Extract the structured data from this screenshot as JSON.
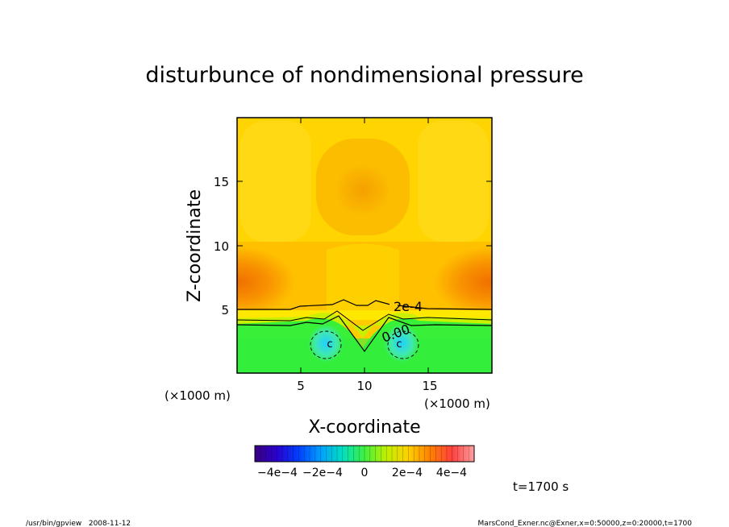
{
  "chart_data": {
    "type": "heatmap",
    "title": "disturbunce of nondimensional pressure",
    "xlabel": "X-coordinate",
    "ylabel": "Z-coordinate",
    "x_unit": "(×1000 m)",
    "y_unit": "(×1000 m)",
    "x_ticks": [
      "5",
      "10",
      "15"
    ],
    "y_ticks": [
      "5",
      "10",
      "15"
    ],
    "xlim": [
      0,
      20
    ],
    "ylim": [
      0,
      20
    ],
    "contour_labels": [
      "2e-4",
      "0.00"
    ],
    "colorbar": {
      "tick_labels": [
        "−4e−4",
        "−2e−4",
        "0",
        "2e−4",
        "4e−4"
      ],
      "range": [
        -0.0005,
        0.0005
      ]
    },
    "features": [
      {
        "type": "max",
        "x": 10,
        "z": 14,
        "value": 0.00032
      },
      {
        "type": "max",
        "x": 1,
        "z": 7,
        "value": 0.0004
      },
      {
        "type": "max",
        "x": 19,
        "z": 7,
        "value": 0.0004
      },
      {
        "type": "min",
        "x": 7.2,
        "z": 2.3,
        "value": -0.00012
      },
      {
        "type": "min",
        "x": 12.8,
        "z": 2.3,
        "value": -0.00012
      }
    ]
  },
  "time_label": "t=1700 s",
  "footer": {
    "left": "/usr/bin/gpview   2008-11-12",
    "right": "MarsCond_Exner.nc@Exner,x=0:50000,z=0:20000,t=1700"
  }
}
